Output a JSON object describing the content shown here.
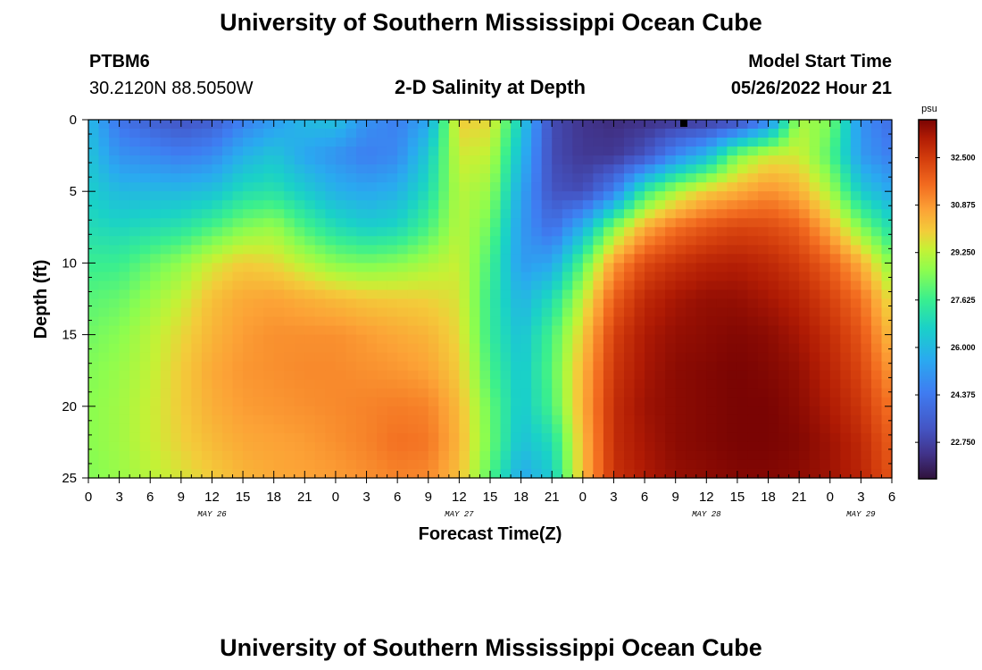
{
  "header": {
    "title": "University of Southern Mississippi Ocean Cube",
    "station": "PTBM6",
    "coords": "30.2120N  88.5050W",
    "subtitle": "2-D Salinity at Depth",
    "model_label": "Model Start Time",
    "model_time": "05/26/2022 Hour 21"
  },
  "footer": {
    "title": "University of Southern Mississippi Ocean Cube"
  },
  "chart_data": {
    "type": "heatmap",
    "title": "2-D Salinity at Depth",
    "xlabel": "Forecast Time(Z)",
    "ylabel": "Depth (ft)",
    "x_range_hours": [
      0,
      78
    ],
    "y_range": [
      0,
      25
    ],
    "x_ticks": [
      "0",
      "3",
      "6",
      "9",
      "12",
      "15",
      "18",
      "21",
      "0",
      "3",
      "6",
      "9",
      "12",
      "15",
      "18",
      "21",
      "0",
      "3",
      "6",
      "9",
      "12",
      "15",
      "18",
      "21",
      "0",
      "3",
      "6"
    ],
    "y_ticks": [
      "0",
      "5",
      "10",
      "15",
      "20",
      "25"
    ],
    "day_labels": [
      {
        "label": "MAY 26",
        "hour": 12
      },
      {
        "label": "MAY 27",
        "hour": 36
      },
      {
        "label": "MAY 28",
        "hour": 60
      },
      {
        "label": "MAY 29",
        "hour": 75
      }
    ],
    "colorbar": {
      "unit": "psu",
      "range": [
        21.5,
        33.8
      ],
      "ticks": [
        "32.500",
        "30.875",
        "29.250",
        "27.625",
        "26.000",
        "24.375",
        "22.750"
      ]
    },
    "grid_columns_hours": [
      0,
      3,
      6,
      9,
      12,
      15,
      18,
      21,
      24,
      27,
      30,
      33,
      36,
      39,
      42,
      45,
      48,
      51,
      54,
      57,
      60,
      63,
      66,
      69,
      72,
      75,
      78
    ],
    "grid_rows_depth": [
      0,
      2.5,
      5,
      7.5,
      10,
      12.5,
      15,
      17.5,
      20,
      22.5,
      25
    ],
    "salinity_grid": [
      [
        26.0,
        24.2,
        23.6,
        23.2,
        23.5,
        24.5,
        25.2,
        26.0,
        26.2,
        25.0,
        24.5,
        25.5,
        30.0,
        29.8,
        26.5,
        23.0,
        22.4,
        22.2,
        22.3,
        22.4,
        22.5,
        22.8,
        24.5,
        29.0,
        28.5,
        25.0,
        24.0
      ],
      [
        26.3,
        25.0,
        24.8,
        24.5,
        24.8,
        25.8,
        26.3,
        25.5,
        25.0,
        24.5,
        24.8,
        26.5,
        29.5,
        29.3,
        26.0,
        23.0,
        22.5,
        22.5,
        23.2,
        24.8,
        26.0,
        28.5,
        29.5,
        29.5,
        28.0,
        25.2,
        24.5
      ],
      [
        26.6,
        26.0,
        26.0,
        26.0,
        26.2,
        27.0,
        27.2,
        26.5,
        25.8,
        25.5,
        25.8,
        27.0,
        29.2,
        28.8,
        25.5,
        23.2,
        23.0,
        24.5,
        27.5,
        29.0,
        30.0,
        30.5,
        31.0,
        30.5,
        29.0,
        26.5,
        25.5
      ],
      [
        27.0,
        26.8,
        27.0,
        27.2,
        27.8,
        28.5,
        28.8,
        27.8,
        27.0,
        26.6,
        26.8,
        27.8,
        29.2,
        28.3,
        25.2,
        24.0,
        25.8,
        28.5,
        30.5,
        31.5,
        32.0,
        32.3,
        32.2,
        31.8,
        30.5,
        28.5,
        27.0
      ],
      [
        27.6,
        27.6,
        28.2,
        28.7,
        29.5,
        30.0,
        29.8,
        29.2,
        28.6,
        28.4,
        28.6,
        29.0,
        29.4,
        27.8,
        25.2,
        25.5,
        28.0,
        30.8,
        32.2,
        32.7,
        33.0,
        33.1,
        32.9,
        32.5,
        31.8,
        30.5,
        28.5
      ],
      [
        28.0,
        28.2,
        28.8,
        29.4,
        30.2,
        30.6,
        30.7,
        30.5,
        30.3,
        30.1,
        30.0,
        29.9,
        29.6,
        27.5,
        25.8,
        27.0,
        29.3,
        31.8,
        32.9,
        33.3,
        33.5,
        33.5,
        33.3,
        33.0,
        32.4,
        31.5,
        29.6
      ],
      [
        28.3,
        28.6,
        29.2,
        29.8,
        30.4,
        30.8,
        31.0,
        31.0,
        31.0,
        30.8,
        30.6,
        30.4,
        29.8,
        27.5,
        26.2,
        27.8,
        30.0,
        32.4,
        33.2,
        33.5,
        33.6,
        33.7,
        33.6,
        33.3,
        32.8,
        32.0,
        30.2
      ],
      [
        28.5,
        28.8,
        29.3,
        30.0,
        30.6,
        30.9,
        31.0,
        31.1,
        31.1,
        31.0,
        30.9,
        30.7,
        30.0,
        27.8,
        26.4,
        28.0,
        30.4,
        32.6,
        33.3,
        33.6,
        33.7,
        33.8,
        33.7,
        33.5,
        33.0,
        32.3,
        30.8
      ],
      [
        28.6,
        28.9,
        29.4,
        30.0,
        30.5,
        30.8,
        30.9,
        31.0,
        31.1,
        31.2,
        31.3,
        31.2,
        30.3,
        28.2,
        26.4,
        27.8,
        30.5,
        32.8,
        33.4,
        33.6,
        33.7,
        33.8,
        33.8,
        33.6,
        33.2,
        32.6,
        31.4
      ],
      [
        28.6,
        28.9,
        29.4,
        29.9,
        30.3,
        30.6,
        30.7,
        30.8,
        31.0,
        31.2,
        31.5,
        31.4,
        30.4,
        28.3,
        26.2,
        27.0,
        30.3,
        32.8,
        33.3,
        33.6,
        33.7,
        33.8,
        33.8,
        33.7,
        33.4,
        32.9,
        31.8
      ],
      [
        28.5,
        28.8,
        29.2,
        29.6,
        30.0,
        30.4,
        30.6,
        30.7,
        30.8,
        31.0,
        31.2,
        31.1,
        30.2,
        28.0,
        25.5,
        26.5,
        30.3,
        32.7,
        33.2,
        33.5,
        33.6,
        33.7,
        33.7,
        33.6,
        33.4,
        33.0,
        32.0
      ]
    ]
  }
}
